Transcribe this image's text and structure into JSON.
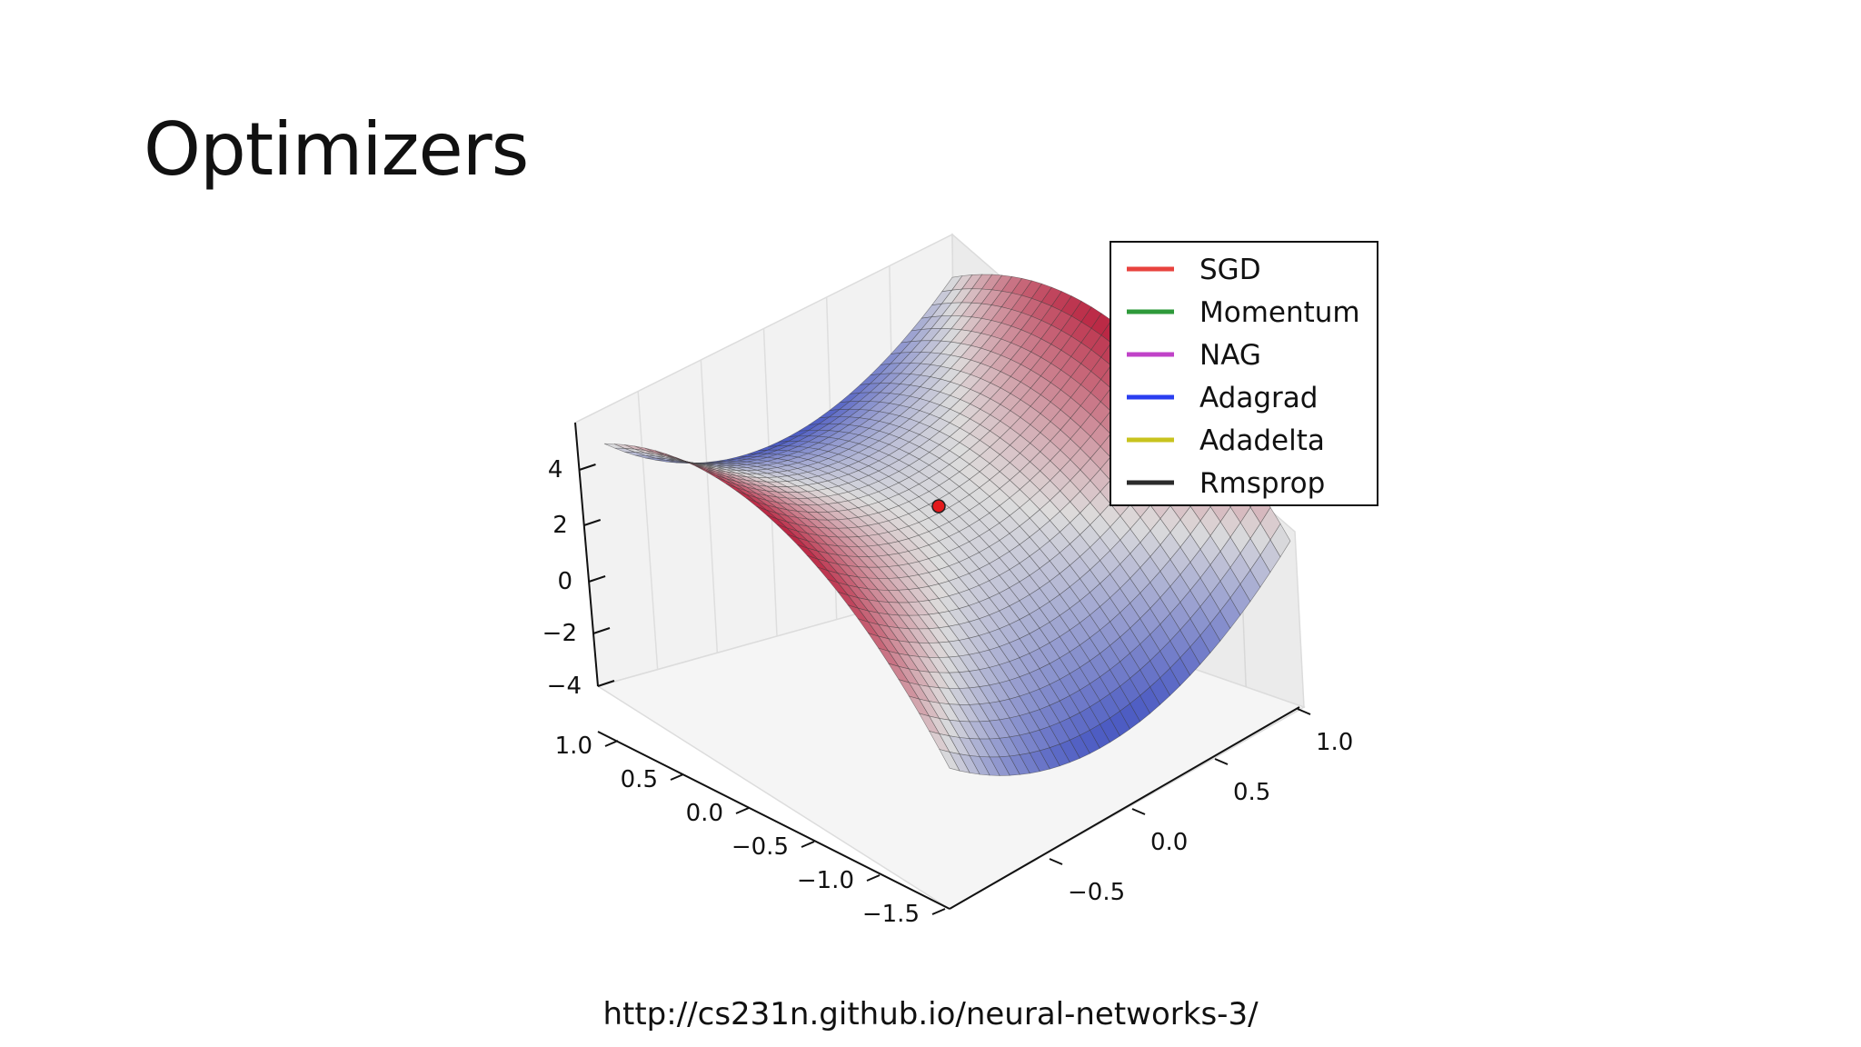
{
  "slide": {
    "title": "Optimizers",
    "source": "http://cs231n.github.io/neural-networks-3/"
  },
  "chart_data": {
    "type": "surface3d",
    "title": "",
    "surface": "saddle",
    "xlim": [
      -1.5,
      1.0
    ],
    "ylim": [
      -0.5,
      1.0
    ],
    "zlim": [
      -4,
      4
    ],
    "x_ticks": [
      "1.0",
      "0.5",
      "0.0",
      "−0.5",
      "−1.0",
      "−1.5"
    ],
    "y_ticks": [
      "1.0",
      "0.5",
      "0.0",
      "−0.5"
    ],
    "z_ticks": [
      "4",
      "2",
      "0",
      "−2",
      "−4"
    ],
    "colormap": [
      "#3b4cc0",
      "#dddcdc",
      "#b40426"
    ],
    "start_point": {
      "x": 0.0,
      "y": 0.0,
      "z": 2.0,
      "color": "#e31a1c"
    },
    "legend": {
      "position": "top-right",
      "series": [
        {
          "name": "SGD",
          "color": "#e8423e"
        },
        {
          "name": "Momentum",
          "color": "#2e9a3a"
        },
        {
          "name": "NAG",
          "color": "#c042c8"
        },
        {
          "name": "Adagrad",
          "color": "#2a3ef0"
        },
        {
          "name": "Adadelta",
          "color": "#c8c31e"
        },
        {
          "name": "Rmsprop",
          "color": "#2b2b2b"
        }
      ]
    }
  }
}
